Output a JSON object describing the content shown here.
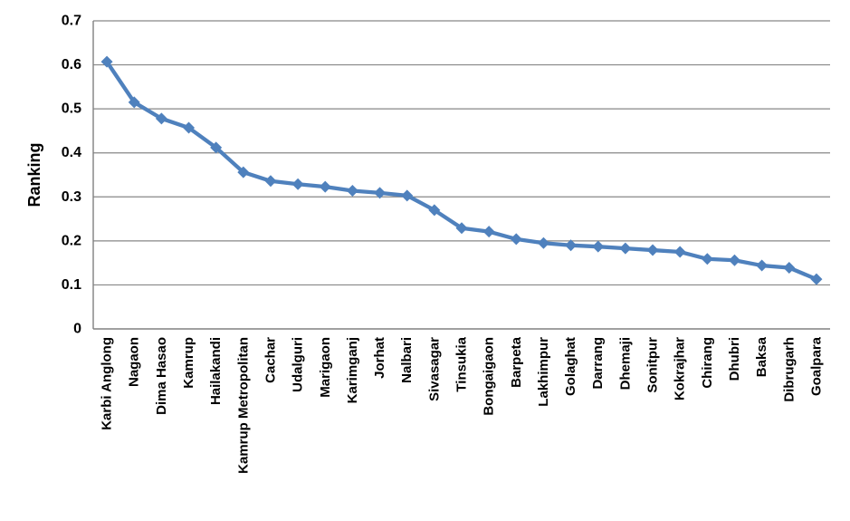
{
  "chart_data": {
    "type": "line",
    "title": "",
    "xlabel": "",
    "ylabel": "Ranking",
    "ylim": [
      0,
      0.7
    ],
    "y_tick_step": 0.1,
    "y_ticks": [
      "0",
      "0.1",
      "0.2",
      "0.3",
      "0.4",
      "0.5",
      "0.6",
      "0.7"
    ],
    "grid": true,
    "legend_position": "none",
    "marker": "diamond",
    "series_name": "Ranking",
    "colors": {
      "series": "#4F81BD",
      "gridline": "#878787",
      "axis": "#808080",
      "text": "#000000",
      "background": "#FFFFFF"
    },
    "categories": [
      "Karbi Anglong",
      "Nagaon",
      "Dima Hasao",
      "Kamrup",
      "Hailakandi",
      "Kamrup Metropolitan",
      "Cachar",
      "Udalguri",
      "Marigaon",
      "Karimganj",
      "Jorhat",
      "Nalbari",
      "Sivasagar",
      "Tinsukia",
      "Bongaigaon",
      "Barpeta",
      "Lakhimpur",
      "Golaghat",
      "Darrang",
      "Dhemaji",
      "Sonitpur",
      "Kokrajhar",
      "Chirang",
      "Dhubri",
      "Baksa",
      "Dibrugarh",
      "Goalpara"
    ],
    "values": [
      0.607,
      0.515,
      0.478,
      0.457,
      0.412,
      0.356,
      0.336,
      0.329,
      0.323,
      0.314,
      0.309,
      0.303,
      0.27,
      0.229,
      0.221,
      0.204,
      0.195,
      0.19,
      0.187,
      0.183,
      0.179,
      0.175,
      0.159,
      0.156,
      0.144,
      0.139,
      0.113
    ]
  }
}
